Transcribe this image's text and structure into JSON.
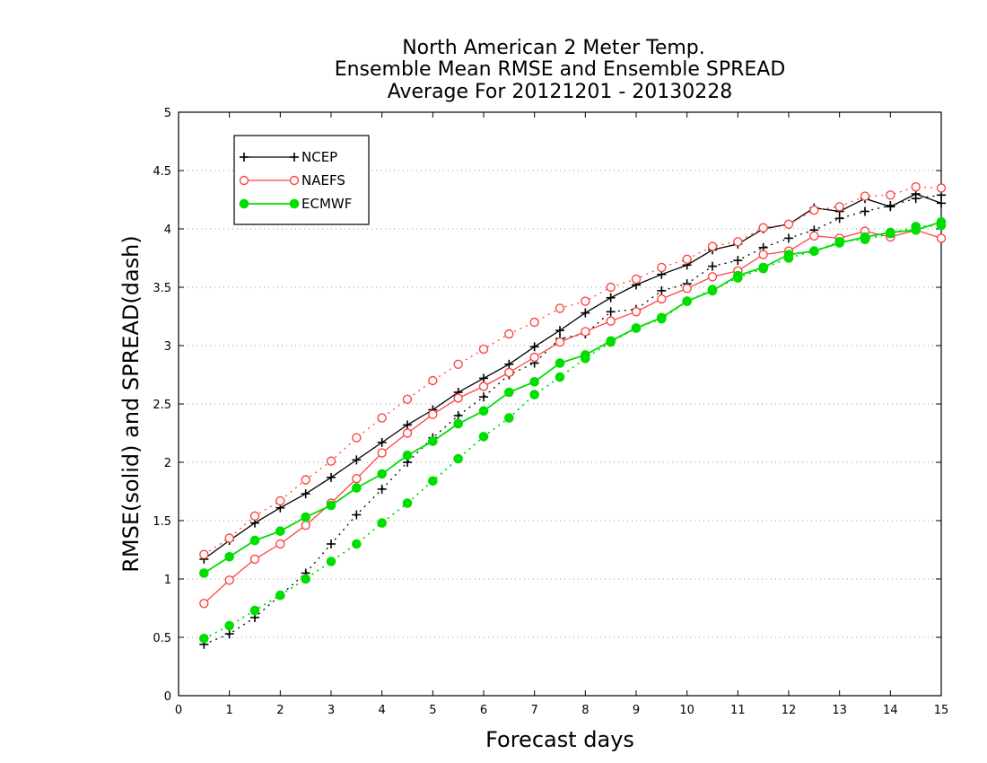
{
  "chart_data": {
    "type": "line",
    "title_lines": [
      "North American 2 Meter Temp.",
      "Ensemble Mean RMSE and Ensemble SPREAD",
      "Average For 20121201 - 20130228"
    ],
    "xlabel": "Forecast days",
    "ylabel": "RMSE(solid) and SPREAD(dash)",
    "xlim": [
      0,
      15
    ],
    "ylim": [
      0,
      5
    ],
    "xticks": [
      "0",
      "1",
      "2",
      "3",
      "4",
      "5",
      "6",
      "7",
      "8",
      "9",
      "10",
      "11",
      "12",
      "13",
      "14",
      "15"
    ],
    "yticks": [
      "0",
      "0.5",
      "1",
      "1.5",
      "2",
      "2.5",
      "3",
      "3.5",
      "4",
      "4.5",
      "5"
    ],
    "grid": true,
    "legend_position": "top-left",
    "x": [
      0.5,
      1,
      1.5,
      2,
      2.5,
      3,
      3.5,
      4,
      4.5,
      5,
      5.5,
      6,
      6.5,
      7,
      7.5,
      8,
      8.5,
      9,
      9.5,
      10,
      10.5,
      11,
      11.5,
      12,
      12.5,
      13,
      13.5,
      14,
      14.5,
      15
    ],
    "series": [
      {
        "name": "NCEP",
        "color": "#000000",
        "marker": "plus",
        "rmse": [
          1.17,
          1.33,
          1.48,
          1.61,
          1.73,
          1.87,
          2.02,
          2.17,
          2.32,
          2.45,
          2.6,
          2.72,
          2.84,
          2.99,
          3.13,
          3.28,
          3.41,
          3.52,
          3.61,
          3.69,
          3.82,
          3.87,
          4.0,
          4.04,
          4.18,
          4.15,
          4.26,
          4.19,
          4.3,
          4.22
        ],
        "spread": [
          0.44,
          0.53,
          0.67,
          0.86,
          1.05,
          1.3,
          1.55,
          1.77,
          2.0,
          2.21,
          2.4,
          2.56,
          2.75,
          2.85,
          3.06,
          3.1,
          3.29,
          3.31,
          3.47,
          3.53,
          3.68,
          3.73,
          3.84,
          3.92,
          3.99,
          4.09,
          4.15,
          4.2,
          4.26,
          4.29
        ]
      },
      {
        "name": "NAEFS",
        "color": "#ff4444",
        "marker": "open-circle",
        "rmse": [
          0.79,
          0.99,
          1.17,
          1.3,
          1.46,
          1.65,
          1.86,
          2.08,
          2.25,
          2.41,
          2.55,
          2.65,
          2.77,
          2.9,
          3.03,
          3.12,
          3.21,
          3.29,
          3.4,
          3.49,
          3.59,
          3.64,
          3.78,
          3.81,
          3.94,
          3.92,
          3.98,
          3.93,
          3.99,
          3.92
        ],
        "spread": [
          1.21,
          1.35,
          1.54,
          1.67,
          1.85,
          2.01,
          2.21,
          2.38,
          2.54,
          2.7,
          2.84,
          2.97,
          3.1,
          3.2,
          3.32,
          3.38,
          3.5,
          3.57,
          3.67,
          3.74,
          3.85,
          3.89,
          4.01,
          4.04,
          4.16,
          4.19,
          4.28,
          4.29,
          4.36,
          4.35
        ]
      },
      {
        "name": "ECMWF",
        "color": "#00dd00",
        "marker": "filled-circle",
        "rmse": [
          1.05,
          1.19,
          1.33,
          1.41,
          1.53,
          1.63,
          1.78,
          1.9,
          2.06,
          2.18,
          2.33,
          2.44,
          2.6,
          2.69,
          2.85,
          2.92,
          3.04,
          3.15,
          3.24,
          3.38,
          3.47,
          3.6,
          3.67,
          3.78,
          3.81,
          3.88,
          3.93,
          3.97,
          3.99,
          4.06
        ],
        "spread": [
          0.49,
          0.6,
          0.73,
          0.86,
          1.0,
          1.15,
          1.3,
          1.48,
          1.65,
          1.84,
          2.03,
          2.22,
          2.38,
          2.58,
          2.73,
          2.89,
          3.03,
          3.15,
          3.23,
          3.38,
          3.48,
          3.58,
          3.66,
          3.75,
          3.81,
          3.89,
          3.91,
          3.96,
          4.02,
          4.03
        ]
      }
    ]
  }
}
